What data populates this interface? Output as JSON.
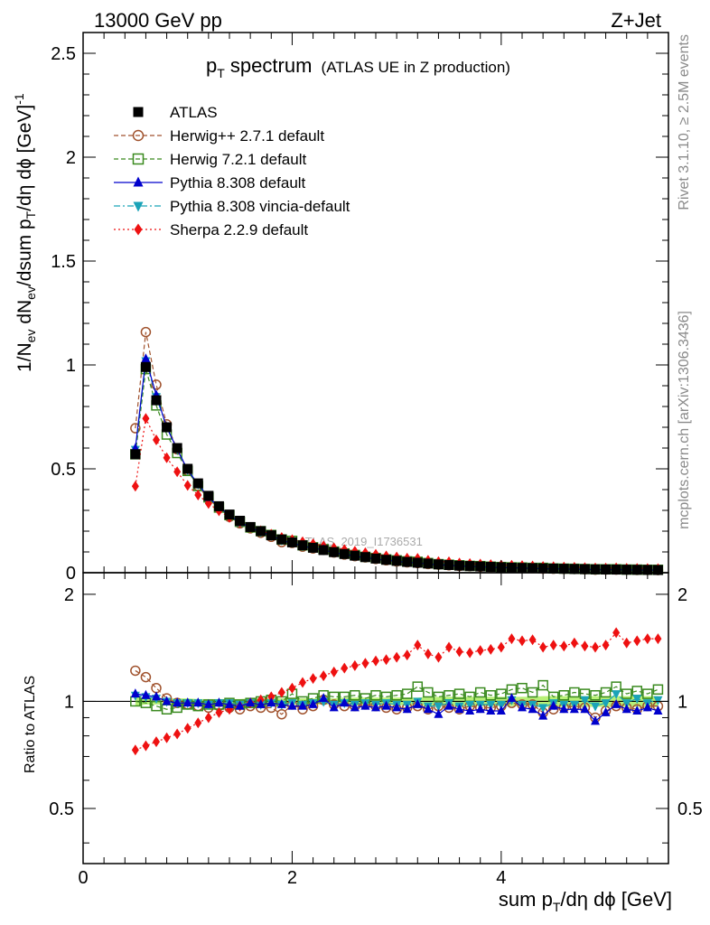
{
  "header": {
    "left": "13000 GeV pp",
    "right": "Z+Jet"
  },
  "side_text": {
    "rivet": "Rivet 3.1.10, ≥ 2.5M events",
    "mcplots": "mcplots.cern.ch [arXiv:1306.3436]"
  },
  "watermark": "ATLAS_2019_I1736531",
  "chart_data": [
    {
      "type": "line",
      "title": "p_T spectrum",
      "title_main": "p",
      "title_sub": "T",
      "title_rest": " spectrum",
      "subtitle": "(ATLAS UE in Z production)",
      "ylabel": "1/N_ev dN_ev/dsum p_T/dη dφ [GeV]^-1",
      "xlim": [
        0,
        5.6
      ],
      "ylim": [
        0,
        2.6
      ],
      "yticks": [
        0,
        0.5,
        1,
        1.5,
        2,
        2.5
      ],
      "ytick_labels": [
        "0",
        "0.5",
        "1",
        "1.5",
        "2",
        "2.5"
      ],
      "legend_position": "top-left",
      "x": [
        0.5,
        0.6,
        0.7,
        0.8,
        0.9,
        1.0,
        1.1,
        1.2,
        1.3,
        1.4,
        1.5,
        1.6,
        1.7,
        1.8,
        1.9,
        2.0,
        2.1,
        2.2,
        2.3,
        2.4,
        2.5,
        2.6,
        2.7,
        2.8,
        2.9,
        3.0,
        3.1,
        3.2,
        3.3,
        3.4,
        3.5,
        3.6,
        3.7,
        3.8,
        3.9,
        4.0,
        4.1,
        4.2,
        4.3,
        4.4,
        4.5,
        4.6,
        4.7,
        4.8,
        4.9,
        5.0,
        5.1,
        5.2,
        5.3,
        5.4,
        5.5
      ],
      "series": [
        {
          "name": "ATLAS",
          "color": "#000000",
          "marker": "square-filled",
          "line": "none",
          "values": [
            0.57,
            0.99,
            0.83,
            0.7,
            0.6,
            0.5,
            0.43,
            0.37,
            0.32,
            0.28,
            0.25,
            0.22,
            0.2,
            0.18,
            0.16,
            0.146,
            0.132,
            0.12,
            0.109,
            0.099,
            0.09,
            0.082,
            0.075,
            0.068,
            0.062,
            0.057,
            0.052,
            0.048,
            0.044,
            0.04,
            0.037,
            0.034,
            0.032,
            0.03,
            0.028,
            0.026,
            0.024,
            0.023,
            0.022,
            0.021,
            0.02,
            0.019,
            0.018,
            0.017,
            0.016,
            0.0155,
            0.015,
            0.0145,
            0.014,
            0.0135,
            0.013
          ]
        },
        {
          "name": "Herwig++ 2.7.1 default",
          "color": "#a0522d",
          "marker": "circle-open",
          "line": "dashed",
          "ratio": [
            1.22,
            1.17,
            1.09,
            1.02,
            0.99,
            0.98,
            0.97,
            0.96,
            0.97,
            0.96,
            0.95,
            0.97,
            0.96,
            0.96,
            0.92,
            0.98,
            0.95,
            0.97,
            1.01,
            0.98,
            0.97,
            0.97,
            0.98,
            0.97,
            0.96,
            0.95,
            0.96,
            0.97,
            0.95,
            0.97,
            0.96,
            0.95,
            0.97,
            0.96,
            0.96,
            0.97,
            0.99,
            0.98,
            0.98,
            0.93,
            0.95,
            0.96,
            0.97,
            0.96,
            0.9,
            0.94,
            0.97,
            0.96,
            0.95,
            0.97,
            0.97
          ]
        },
        {
          "name": "Herwig 7.2.1 default",
          "color": "#3a8a1f",
          "marker": "square-open",
          "line": "dashed",
          "ratio": [
            1.0,
            0.99,
            0.97,
            0.95,
            0.96,
            0.98,
            0.97,
            0.98,
            0.98,
            0.99,
            0.98,
            0.99,
            1.0,
            1.01,
            1.0,
            1.05,
            1.0,
            1.02,
            1.04,
            1.03,
            1.03,
            1.04,
            1.02,
            1.04,
            1.03,
            1.04,
            1.05,
            1.1,
            1.06,
            1.03,
            1.04,
            1.05,
            1.03,
            1.06,
            1.04,
            1.05,
            1.08,
            1.09,
            1.06,
            1.11,
            1.03,
            1.04,
            1.06,
            1.05,
            1.04,
            1.06,
            1.1,
            1.05,
            1.07,
            1.05,
            1.08
          ]
        },
        {
          "name": "Pythia 8.308 default",
          "color": "#0000cc",
          "marker": "triangle-up",
          "line": "solid",
          "ratio": [
            1.05,
            1.04,
            1.03,
            1.0,
            0.99,
            0.99,
            0.99,
            0.98,
            0.99,
            0.98,
            0.97,
            0.99,
            0.98,
            0.99,
            0.98,
            0.97,
            0.97,
            0.98,
            1.02,
            0.96,
            0.99,
            0.96,
            0.97,
            0.96,
            0.97,
            0.96,
            0.95,
            0.98,
            0.95,
            0.92,
            0.97,
            0.95,
            0.94,
            0.95,
            0.94,
            0.94,
            1.02,
            0.96,
            0.95,
            0.91,
            0.97,
            0.95,
            0.95,
            0.95,
            0.88,
            0.93,
            0.98,
            0.95,
            0.94,
            0.96,
            0.94
          ]
        },
        {
          "name": "Pythia 8.308 vincia-default",
          "color": "#1aa3b8",
          "marker": "triangle-down",
          "line": "dashdot",
          "ratio": [
            1.04,
            1.03,
            1.02,
            1.0,
            0.99,
            0.99,
            0.99,
            0.98,
            0.99,
            0.99,
            0.98,
            0.99,
            0.98,
            0.99,
            0.98,
            0.99,
            0.98,
            0.99,
            1.0,
            0.98,
            0.99,
            0.98,
            0.99,
            0.98,
            0.99,
            0.98,
            0.98,
            1.0,
            0.97,
            0.97,
            0.99,
            0.97,
            0.98,
            0.98,
            0.98,
            0.98,
            1.01,
            0.98,
            0.98,
            0.96,
            0.99,
            0.98,
            0.98,
            1.01,
            0.97,
            0.99,
            1.05,
            0.99,
            1.02,
            0.99,
            1.01
          ]
        },
        {
          "name": "Sherpa 2.2.9 default",
          "color": "#ee1111",
          "marker": "diamond",
          "line": "dotted",
          "ratio": [
            0.73,
            0.75,
            0.77,
            0.79,
            0.81,
            0.84,
            0.87,
            0.9,
            0.93,
            0.95,
            0.97,
            0.99,
            1.01,
            1.03,
            1.06,
            1.09,
            1.13,
            1.16,
            1.18,
            1.21,
            1.24,
            1.26,
            1.28,
            1.3,
            1.31,
            1.33,
            1.35,
            1.44,
            1.36,
            1.33,
            1.42,
            1.38,
            1.37,
            1.39,
            1.4,
            1.42,
            1.5,
            1.48,
            1.49,
            1.42,
            1.44,
            1.43,
            1.46,
            1.43,
            1.42,
            1.44,
            1.56,
            1.46,
            1.48,
            1.5,
            1.5
          ]
        }
      ]
    },
    {
      "type": "line",
      "title": "Ratio to ATLAS",
      "ylabel": "Ratio to ATLAS",
      "xlabel": "sum p_T/dη dφ [GeV]",
      "xlim": [
        0,
        5.6
      ],
      "ylim": [
        0.35,
        2.3
      ],
      "yticks": [
        0.5,
        1,
        2
      ],
      "ytick_labels": [
        "0.5",
        "1",
        "2"
      ],
      "xticks": [
        0,
        2,
        4
      ],
      "xtick_labels": [
        "0",
        "2",
        "4"
      ],
      "reference_line": 1.0,
      "band_color": "#b8f078",
      "band_halfwidth": [
        0.03,
        0.02,
        0.02,
        0.02,
        0.02,
        0.02,
        0.015,
        0.015,
        0.015,
        0.015,
        0.015,
        0.02,
        0.02,
        0.02,
        0.02,
        0.02,
        0.02,
        0.02,
        0.02,
        0.02,
        0.025,
        0.025,
        0.025,
        0.025,
        0.025,
        0.025,
        0.025,
        0.025,
        0.03,
        0.03,
        0.03,
        0.03,
        0.03,
        0.03,
        0.03,
        0.03,
        0.03,
        0.03,
        0.03,
        0.035,
        0.035,
        0.035,
        0.035,
        0.035,
        0.035,
        0.035,
        0.035,
        0.035,
        0.035,
        0.035,
        0.035
      ]
    }
  ]
}
